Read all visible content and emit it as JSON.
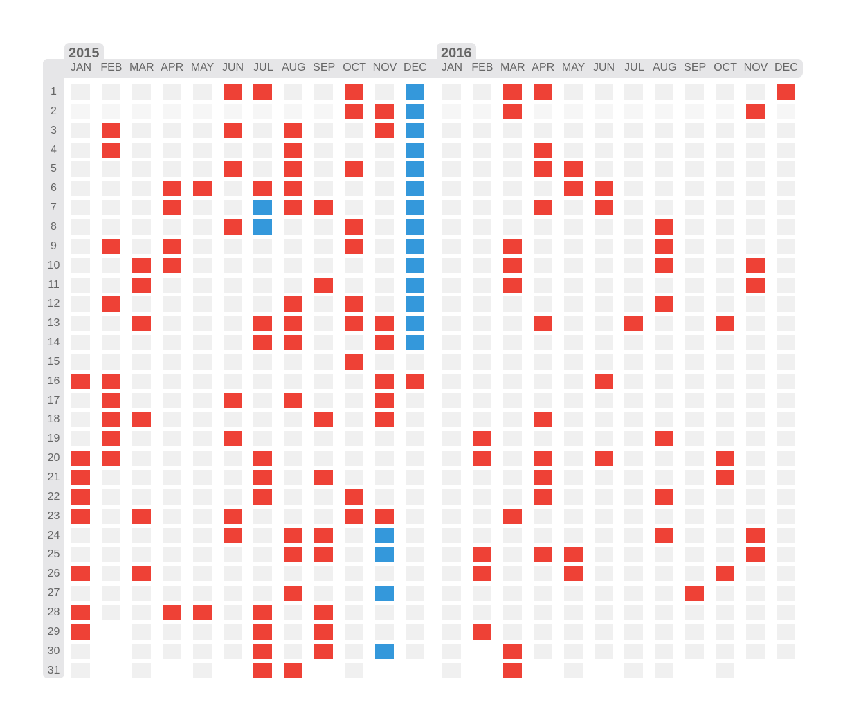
{
  "chart_data": {
    "type": "heatmap",
    "title": "",
    "xlabel": "",
    "ylabel": "",
    "months": [
      "JAN",
      "FEB",
      "MAR",
      "APR",
      "MAY",
      "JUN",
      "JUL",
      "AUG",
      "SEP",
      "OCT",
      "NOV",
      "DEC"
    ],
    "days": [
      "1",
      "2",
      "3",
      "4",
      "5",
      "6",
      "7",
      "8",
      "9",
      "10",
      "11",
      "12",
      "13",
      "14",
      "15",
      "16",
      "17",
      "18",
      "19",
      "20",
      "21",
      "22",
      "23",
      "24",
      "25",
      "26",
      "27",
      "28",
      "29",
      "30",
      "31"
    ],
    "colors": {
      "empty": "#f0f0f0",
      "red": "#ee4136",
      "blue": "#3498db",
      "band": "#e6e6e8"
    },
    "years": [
      {
        "label": "2015",
        "months": [
          {
            "name": "JAN",
            "length": 31,
            "red": [
              16,
              20,
              21,
              22,
              23,
              26,
              28,
              29
            ],
            "blue": []
          },
          {
            "name": "FEB",
            "length": 28,
            "red": [
              3,
              4,
              9,
              12,
              16,
              17,
              18,
              19,
              20
            ],
            "blue": []
          },
          {
            "name": "MAR",
            "length": 31,
            "red": [
              10,
              11,
              13,
              18,
              23,
              26
            ],
            "blue": []
          },
          {
            "name": "APR",
            "length": 30,
            "red": [
              6,
              7,
              9,
              10,
              28
            ],
            "blue": []
          },
          {
            "name": "MAY",
            "length": 31,
            "red": [
              6,
              28
            ],
            "blue": []
          },
          {
            "name": "JUN",
            "length": 30,
            "red": [
              1,
              3,
              5,
              8,
              17,
              19,
              23,
              24
            ],
            "blue": []
          },
          {
            "name": "JUL",
            "length": 31,
            "red": [
              1,
              6,
              13,
              14,
              20,
              21,
              22,
              28,
              29,
              30,
              31
            ],
            "blue": [
              7,
              8
            ]
          },
          {
            "name": "AUG",
            "length": 31,
            "red": [
              3,
              4,
              5,
              6,
              7,
              12,
              13,
              14,
              17,
              24,
              25,
              27,
              31
            ],
            "blue": []
          },
          {
            "name": "SEP",
            "length": 30,
            "red": [
              7,
              11,
              18,
              21,
              24,
              25,
              28,
              29,
              30
            ],
            "blue": []
          },
          {
            "name": "OCT",
            "length": 31,
            "red": [
              1,
              2,
              5,
              8,
              9,
              12,
              13,
              15,
              22,
              23
            ],
            "blue": []
          },
          {
            "name": "NOV",
            "length": 30,
            "red": [
              2,
              3,
              13,
              14,
              16,
              17,
              18,
              23
            ],
            "blue": [
              24,
              25,
              27,
              30
            ]
          },
          {
            "name": "DEC",
            "length": 30,
            "red": [
              16
            ],
            "blue": [
              1,
              2,
              3,
              4,
              5,
              6,
              7,
              8,
              9,
              10,
              11,
              12,
              13,
              14
            ]
          }
        ]
      },
      {
        "label": "2016",
        "months": [
          {
            "name": "JAN",
            "length": 31,
            "red": [],
            "blue": []
          },
          {
            "name": "FEB",
            "length": 29,
            "red": [
              19,
              20,
              25,
              26,
              29
            ],
            "blue": []
          },
          {
            "name": "MAR",
            "length": 31,
            "red": [
              1,
              2,
              9,
              10,
              11,
              23,
              30,
              31
            ],
            "blue": []
          },
          {
            "name": "APR",
            "length": 30,
            "red": [
              1,
              4,
              5,
              7,
              13,
              18,
              20,
              21,
              22,
              25
            ],
            "blue": []
          },
          {
            "name": "MAY",
            "length": 31,
            "red": [
              5,
              6,
              25,
              26
            ],
            "blue": []
          },
          {
            "name": "JUN",
            "length": 30,
            "red": [
              6,
              7,
              16,
              20
            ],
            "blue": []
          },
          {
            "name": "JUL",
            "length": 31,
            "red": [
              13
            ],
            "blue": []
          },
          {
            "name": "AUG",
            "length": 31,
            "red": [
              8,
              9,
              10,
              12,
              19,
              22,
              24
            ],
            "blue": []
          },
          {
            "name": "SEP",
            "length": 30,
            "red": [
              27
            ],
            "blue": []
          },
          {
            "name": "OCT",
            "length": 31,
            "red": [
              13,
              20,
              21,
              26
            ],
            "blue": []
          },
          {
            "name": "NOV",
            "length": 30,
            "red": [
              2,
              10,
              11,
              24,
              25
            ],
            "blue": []
          },
          {
            "name": "DEC",
            "length": 30,
            "red": [
              1
            ],
            "blue": []
          }
        ]
      }
    ]
  }
}
